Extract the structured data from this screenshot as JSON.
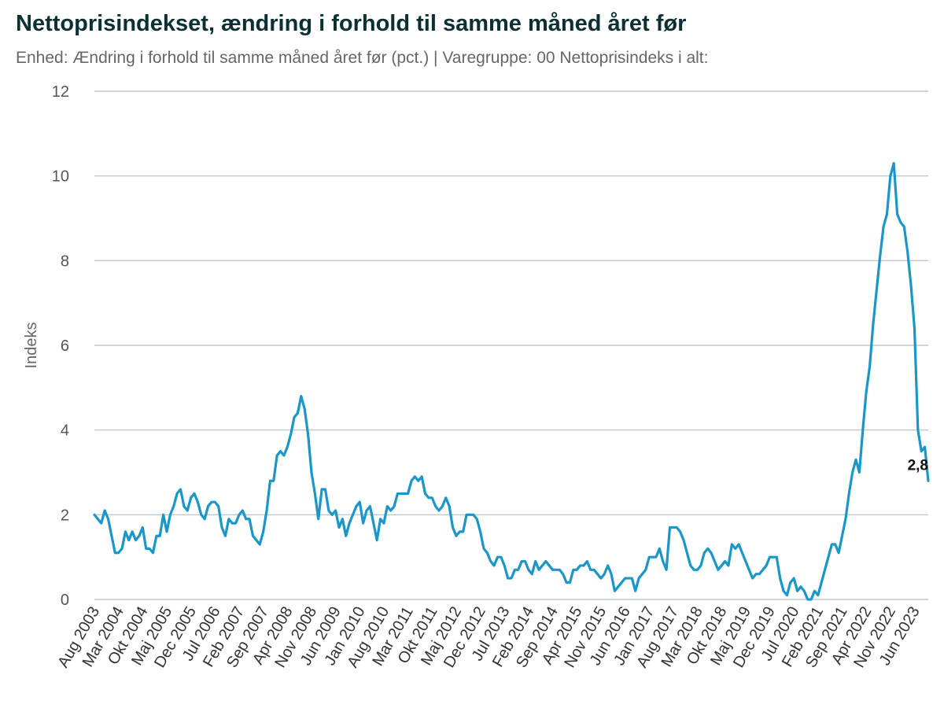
{
  "title": "Nettoprisindekset, ændring i forhold til samme måned året før",
  "subtitle": "Enhed: Ændring i forhold til samme måned året før (pct.) | Varegruppe: 00 Nettoprisindeks i alt:",
  "colors": {
    "line": "#1b96c8",
    "grid": "#aebfc4",
    "title": "#0b2f33"
  },
  "chart_data": {
    "type": "line",
    "title": "Nettoprisindekset, ændring i forhold til samme måned året før",
    "ylabel": "Indeks",
    "xlabel": "",
    "ylim": [
      0,
      12
    ],
    "yticks": [
      0,
      2,
      4,
      6,
      8,
      10,
      12
    ],
    "grid": true,
    "legend": "none",
    "x_start": "Aug 2003",
    "x_end": "Sep 2023",
    "xtick_labels": [
      "Aug 2003",
      "Mar 2004",
      "Okt 2004",
      "Maj 2005",
      "Dec 2005",
      "Jul 2006",
      "Feb 2007",
      "Sep 2007",
      "Apr 2008",
      "Nov 2008",
      "Jun 2009",
      "Jan 2010",
      "Aug 2010",
      "Mar 2011",
      "Okt 2011",
      "Maj 2012",
      "Dec 2012",
      "Jul 2013",
      "Feb 2014",
      "Sep 2014",
      "Apr 2015",
      "Nov 2015",
      "Jun 2016",
      "Jan 2017",
      "Aug 2017",
      "Mar 2018",
      "Okt 2018",
      "Maj 2019",
      "Dec 2019",
      "Jul 2020",
      "Feb 2021",
      "Sep 2021",
      "Apr 2022",
      "Nov 2022",
      "Jun 2023"
    ],
    "end_label": "2,8",
    "series": [
      {
        "values": [
          2.0,
          1.9,
          1.8,
          2.1,
          1.9,
          1.5,
          1.1,
          1.1,
          1.2,
          1.6,
          1.4,
          1.6,
          1.4,
          1.5,
          1.7,
          1.2,
          1.2,
          1.1,
          1.5,
          1.5,
          2.0,
          1.6,
          2.0,
          2.2,
          2.5,
          2.6,
          2.2,
          2.1,
          2.4,
          2.5,
          2.3,
          2.0,
          1.9,
          2.2,
          2.3,
          2.3,
          2.2,
          1.7,
          1.5,
          1.9,
          1.8,
          1.8,
          2.0,
          2.1,
          1.9,
          1.9,
          1.5,
          1.4,
          1.3,
          1.6,
          2.1,
          2.8,
          2.8,
          3.4,
          3.5,
          3.4,
          3.6,
          3.9,
          4.3,
          4.4,
          4.8,
          4.5,
          3.9,
          3.0,
          2.5,
          1.9,
          2.6,
          2.6,
          2.1,
          2.0,
          2.1,
          1.7,
          1.9,
          1.5,
          1.8,
          2.0,
          2.2,
          2.3,
          1.8,
          2.1,
          2.2,
          1.8,
          1.4,
          1.9,
          1.8,
          2.2,
          2.1,
          2.2,
          2.5,
          2.5,
          2.5,
          2.5,
          2.8,
          2.9,
          2.8,
          2.9,
          2.5,
          2.4,
          2.4,
          2.2,
          2.1,
          2.2,
          2.4,
          2.2,
          1.7,
          1.5,
          1.6,
          1.6,
          2.0,
          2.0,
          2.0,
          1.9,
          1.6,
          1.2,
          1.1,
          0.9,
          0.8,
          1.0,
          1.0,
          0.8,
          0.5,
          0.5,
          0.7,
          0.7,
          0.9,
          0.9,
          0.7,
          0.6,
          0.9,
          0.7,
          0.8,
          0.9,
          0.8,
          0.7,
          0.7,
          0.7,
          0.6,
          0.4,
          0.4,
          0.7,
          0.7,
          0.8,
          0.8,
          0.9,
          0.7,
          0.7,
          0.6,
          0.5,
          0.6,
          0.8,
          0.6,
          0.2,
          0.3,
          0.4,
          0.5,
          0.5,
          0.5,
          0.2,
          0.5,
          0.6,
          0.7,
          1.0,
          1.0,
          1.0,
          1.2,
          0.9,
          0.7,
          1.7,
          1.7,
          1.7,
          1.6,
          1.4,
          1.1,
          0.8,
          0.7,
          0.7,
          0.8,
          1.1,
          1.2,
          1.1,
          0.9,
          0.7,
          0.8,
          0.9,
          0.8,
          1.3,
          1.2,
          1.3,
          1.1,
          0.9,
          0.7,
          0.5,
          0.6,
          0.6,
          0.7,
          0.8,
          1.0,
          1.0,
          1.0,
          0.5,
          0.2,
          0.1,
          0.4,
          0.5,
          0.2,
          0.3,
          0.2,
          0.0,
          0.0,
          0.2,
          0.1,
          0.4,
          0.7,
          1.0,
          1.3,
          1.3,
          1.1,
          1.5,
          1.9,
          2.5,
          3.0,
          3.3,
          3.0,
          4.0,
          4.9,
          5.5,
          6.5,
          7.3,
          8.1,
          8.8,
          9.1,
          10.0,
          10.3,
          9.1,
          8.9,
          8.8,
          8.2,
          7.4,
          6.4,
          4.0,
          3.5,
          3.6,
          2.8
        ]
      }
    ]
  }
}
